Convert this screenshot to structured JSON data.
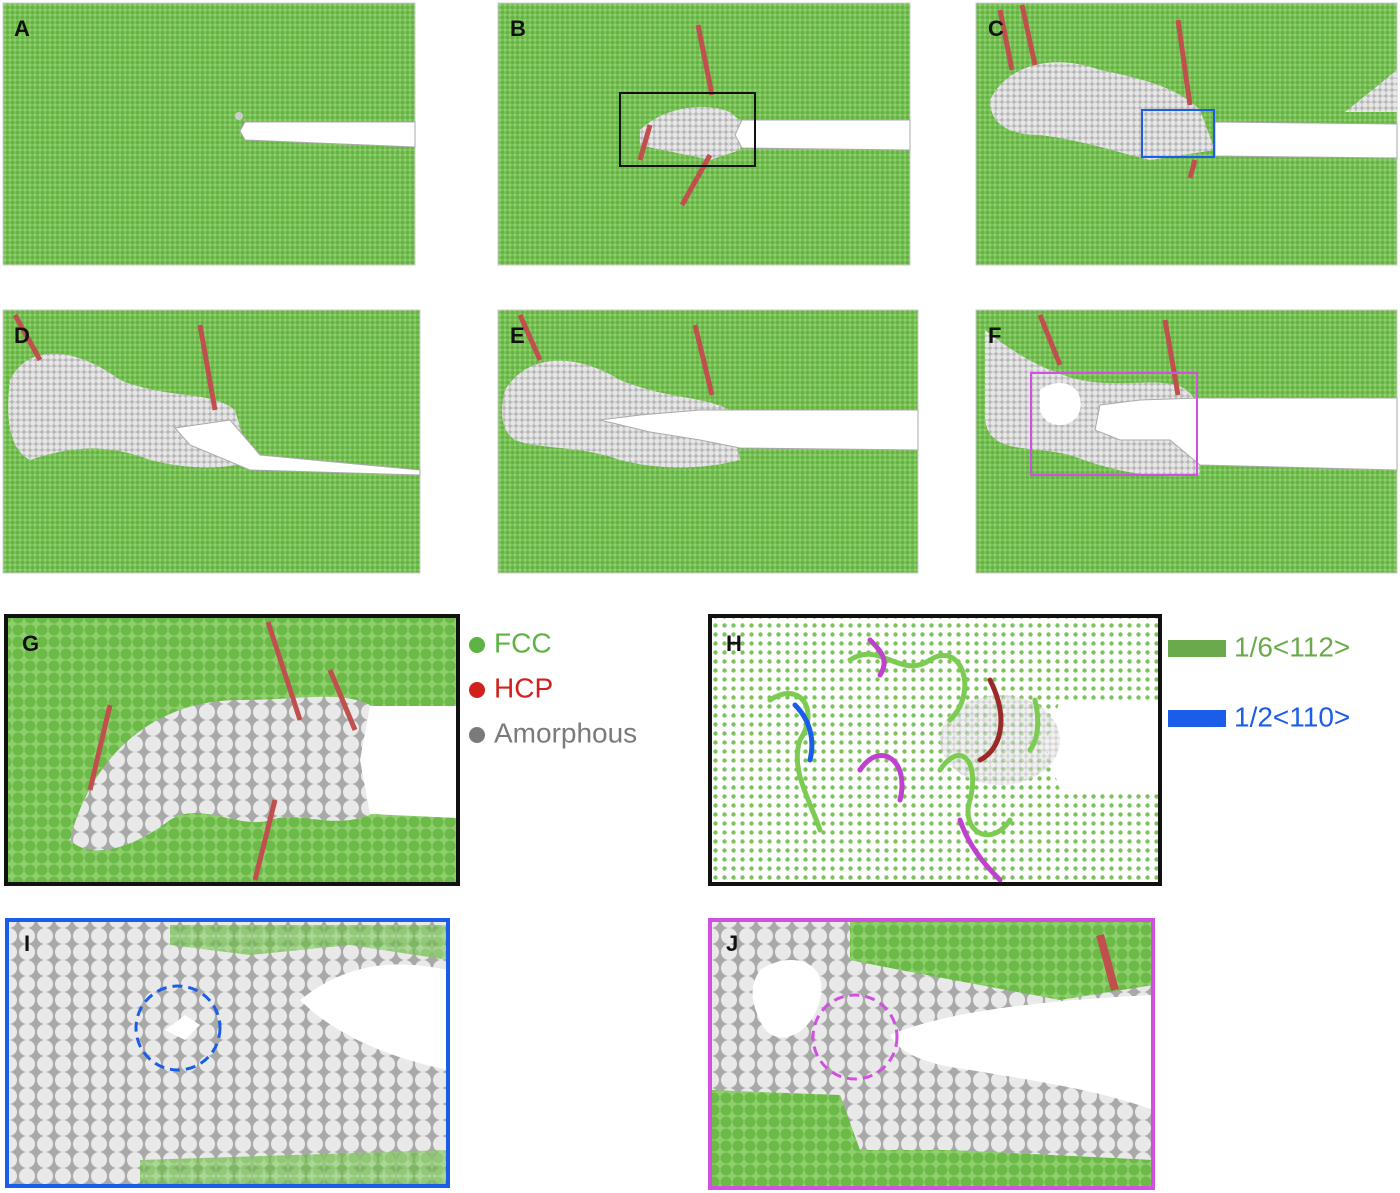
{
  "panels": [
    {
      "label": "A"
    },
    {
      "label": "B"
    },
    {
      "label": "C"
    },
    {
      "label": "D"
    },
    {
      "label": "E"
    },
    {
      "label": "F"
    },
    {
      "label": "G"
    },
    {
      "label": "H"
    },
    {
      "label": "I"
    },
    {
      "label": "J"
    }
  ],
  "legend_phases": [
    {
      "label": "FCC",
      "color": "#5fb244"
    },
    {
      "label": "HCP",
      "color": "#d0211c"
    },
    {
      "label": "Amorphous",
      "color": "#7a7a7a"
    }
  ],
  "legend_dislocations": [
    {
      "label": "1/6<112>",
      "color": "#6aaa4c"
    },
    {
      "label": "1/2<110>",
      "color": "#1a5de8"
    }
  ]
}
